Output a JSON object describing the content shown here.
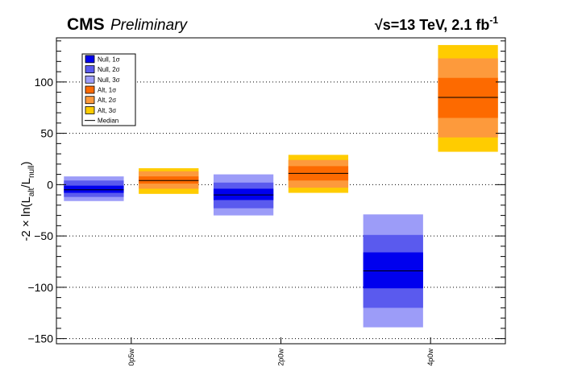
{
  "header": {
    "experiment": "CMS",
    "status": "Preliminary",
    "energy_prefix": "√",
    "energy_main": "s=13 TeV, 2.1 fb",
    "energy_exponent": "-1"
  },
  "axes": {
    "y_label_main": "-2 × ln(L",
    "y_label_sub_alt": "alt",
    "y_label_slash": "/L",
    "y_label_sub_null": "null",
    "y_label_close": ")"
  },
  "legend": {
    "entries": [
      {
        "label": "Null, 1σ",
        "color": "#0000ee",
        "kind": "box"
      },
      {
        "label": "Null, 2σ",
        "color": "#5a5aee",
        "kind": "box"
      },
      {
        "label": "Null, 3σ",
        "color": "#9c9cf8",
        "kind": "box"
      },
      {
        "label": "Alt,  1σ",
        "color": "#fd6a00",
        "kind": "box"
      },
      {
        "label": "Alt,  2σ",
        "color": "#fd9a3c",
        "kind": "box"
      },
      {
        "label": "Alt,  3σ",
        "color": "#ffcc00",
        "kind": "box"
      },
      {
        "label": "Median",
        "color": "#000000",
        "kind": "line"
      }
    ]
  },
  "chart_data": {
    "type": "box",
    "ylim": [
      -155,
      143
    ],
    "grid": "horizontal-dotted",
    "yticks": [
      -150,
      -100,
      -50,
      0,
      50,
      100
    ],
    "ytick_labels": [
      "−150",
      "−100",
      "−50",
      "0",
      "50",
      "100"
    ],
    "categories": [
      "0p5w",
      "2p0w",
      "4p0w"
    ],
    "colors": {
      "null": [
        "#0000ee",
        "#5a5aee",
        "#9c9cf8"
      ],
      "alt": [
        "#fd6a00",
        "#fd9a3c",
        "#ffcc00"
      ],
      "median": "#000000"
    },
    "series": [
      {
        "name": "Null",
        "points": [
          {
            "category": "0p5w",
            "median": -5,
            "s1": [
              -8,
              -1
            ],
            "s2": [
              -12,
              4
            ],
            "s3": [
              -16,
              8
            ]
          },
          {
            "category": "2p0w",
            "median": -10,
            "s1": [
              -15,
              -4
            ],
            "s2": [
              -23,
              2
            ],
            "s3": [
              -30,
              10
            ]
          },
          {
            "category": "4p0w",
            "median": -84,
            "s1": [
              -101,
              -66
            ],
            "s2": [
              -120,
              -49
            ],
            "s3": [
              -139,
              -29
            ]
          }
        ]
      },
      {
        "name": "Alt",
        "points": [
          {
            "category": "0p5w",
            "median": 4,
            "s1": [
              1,
              8
            ],
            "s2": [
              -4,
              13
            ],
            "s3": [
              -9,
              16
            ]
          },
          {
            "category": "2p0w",
            "median": 11,
            "s1": [
              4,
              18
            ],
            "s2": [
              -3,
              24
            ],
            "s3": [
              -8,
              29
            ]
          },
          {
            "category": "4p0w",
            "median": 85,
            "s1": [
              65,
              104
            ],
            "s2": [
              46,
              123
            ],
            "s3": [
              32,
              136
            ]
          }
        ]
      }
    ]
  }
}
